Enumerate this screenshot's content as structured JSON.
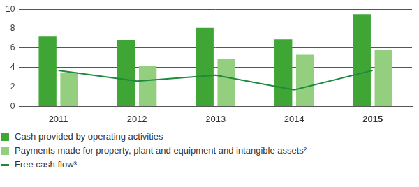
{
  "chart_data": {
    "type": "bar",
    "categories": [
      "2011",
      "2012",
      "2013",
      "2014",
      "2015"
    ],
    "series": [
      {
        "name": "Cash provided by operating activities",
        "color": "#3fa535",
        "values": [
          7.2,
          6.8,
          8.1,
          6.9,
          9.5
        ]
      },
      {
        "name": "Payments made for property, plant and equipment and intangible assets²",
        "color": "#94cf7f",
        "values": [
          3.5,
          4.2,
          4.9,
          5.3,
          5.8
        ]
      },
      {
        "name": "Free cash flow³",
        "type": "line",
        "color": "#1e8a3c",
        "values": [
          3.7,
          2.6,
          3.2,
          1.7,
          3.7
        ]
      }
    ],
    "ylim": [
      0,
      10
    ],
    "yticks": [
      0,
      2,
      4,
      6,
      8,
      10
    ],
    "grid": true,
    "legend": "lower left"
  }
}
